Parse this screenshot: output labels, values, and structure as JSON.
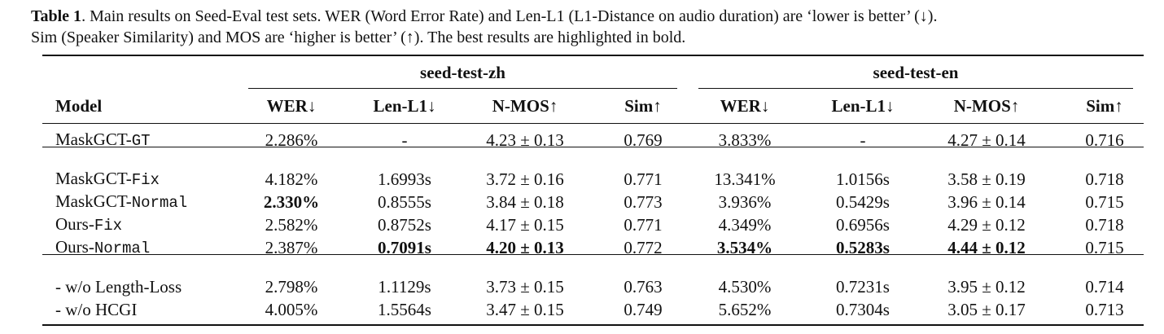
{
  "caption": {
    "label": "Table 1",
    "lines": [
      ". Main results on Seed-Eval test sets. WER (Word Error Rate) and Len-L1 (L1-Distance on audio duration) are ‘lower is better’ (↓).",
      "Sim (Speaker Similarity) and MOS are ‘higher is better’ (↑). The best results are highlighted in bold."
    ]
  },
  "table": {
    "groups": [
      "seed-test-zh",
      "seed-test-en"
    ],
    "header": [
      "Model",
      "WER↓",
      "Len-L1↓",
      "N-MOS↑",
      "Sim↑",
      "WER↓",
      "Len-L1↓",
      "N-MOS↑",
      "Sim↑"
    ],
    "sections": [
      [
        {
          "model": {
            "base": "MaskGCT-",
            "variant": "GT"
          },
          "cells": [
            "2.286%",
            "-",
            "4.23 ± 0.13",
            "0.769",
            "3.833%",
            "-",
            "4.27 ± 0.14",
            "0.716"
          ]
        }
      ],
      [
        {
          "model": {
            "base": "MaskGCT-",
            "variant": "Fix"
          },
          "cells": [
            "4.182%",
            "1.6993s",
            "3.72 ± 0.16",
            "0.771",
            "13.341%",
            "1.0156s",
            "3.58 ± 0.19",
            "0.718"
          ]
        },
        {
          "model": {
            "base": "MaskGCT-",
            "variant": "Normal"
          },
          "cells": [
            {
              "text": "2.330%",
              "bold": true
            },
            "0.8555s",
            "3.84 ± 0.18",
            "0.773",
            "3.936%",
            "0.5429s",
            "3.96 ± 0.14",
            "0.715"
          ]
        },
        {
          "model": {
            "base": "Ours-",
            "variant": "Fix"
          },
          "cells": [
            "2.582%",
            "0.8752s",
            "4.17 ± 0.15",
            "0.771",
            "4.349%",
            "0.6956s",
            "4.29 ± 0.12",
            "0.718"
          ]
        },
        {
          "model": {
            "base": "Ours-",
            "variant": "Normal"
          },
          "cells": [
            "2.387%",
            {
              "text": "0.7091s",
              "bold": true
            },
            {
              "text": "4.20 ± 0.13",
              "bold": true
            },
            "0.772",
            {
              "text": "3.534%",
              "bold": true
            },
            {
              "text": "0.5283s",
              "bold": true
            },
            {
              "text": "4.44 ± 0.12",
              "bold": true
            },
            "0.715"
          ]
        }
      ],
      [
        {
          "model": {
            "base": "- w/o Length-Loss"
          },
          "cells": [
            "2.798%",
            "1.1129s",
            "3.73 ± 0.15",
            "0.763",
            "4.530%",
            "0.7231s",
            "3.95 ± 0.12",
            "0.714"
          ]
        },
        {
          "model": {
            "base": "- w/o HCGI"
          },
          "cells": [
            "4.005%",
            "1.5564s",
            "3.47 ± 0.15",
            "0.749",
            "5.652%",
            "0.7304s",
            "3.05 ± 0.17",
            "0.713"
          ]
        }
      ]
    ]
  }
}
